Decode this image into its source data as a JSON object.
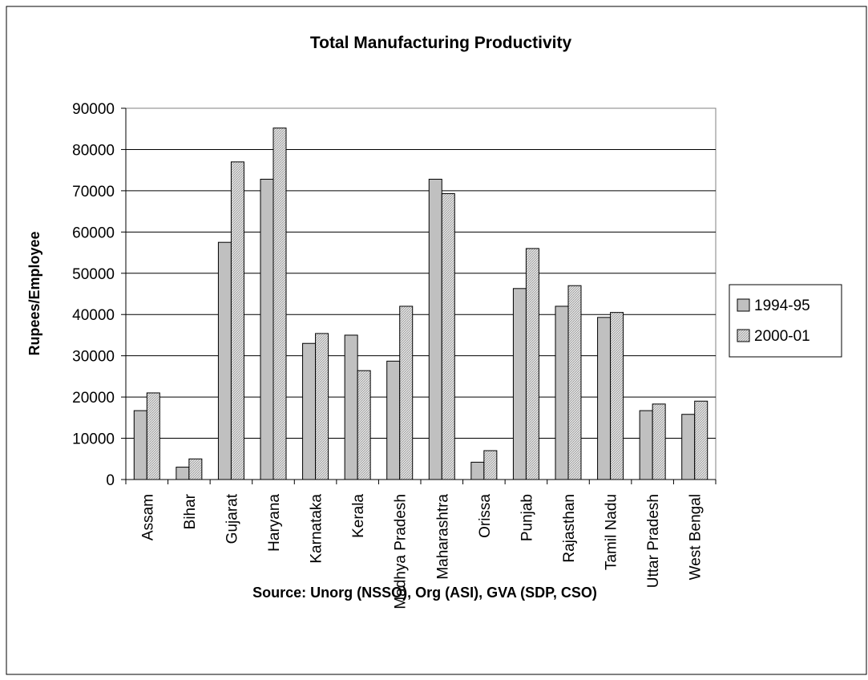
{
  "chart_data": {
    "type": "bar",
    "title": "Total Manufacturing Productivity",
    "xlabel": "Source: Unorg (NSSO), Org (ASI), GVA (SDP, CSO)",
    "ylabel": "Rupees/Employee",
    "ylim": [
      0,
      90000
    ],
    "yticks": [
      0,
      10000,
      20000,
      30000,
      40000,
      50000,
      60000,
      70000,
      80000,
      90000
    ],
    "grid": true,
    "legend_position": "right",
    "categories": [
      "Assam",
      "Bihar",
      "Gujarat",
      "Haryana",
      "Karnataka",
      "Kerala",
      "Madhya Pradesh",
      "Maharashtra",
      "Orissa",
      "Punjab",
      "Rajasthan",
      "Tamil Nadu",
      "Uttar Pradesh",
      "West Bengal"
    ],
    "series": [
      {
        "name": "1994-95",
        "color": "#c0c0c0",
        "values": [
          16700,
          3000,
          57500,
          72800,
          33000,
          35000,
          28700,
          72800,
          4200,
          46300,
          42000,
          39300,
          16700,
          15800
        ]
      },
      {
        "name": "2000-01",
        "color": "#d4d4d4",
        "values": [
          21000,
          5000,
          77000,
          85200,
          35400,
          26400,
          42000,
          69300,
          7000,
          56000,
          47000,
          40500,
          18300,
          19000
        ]
      }
    ]
  }
}
